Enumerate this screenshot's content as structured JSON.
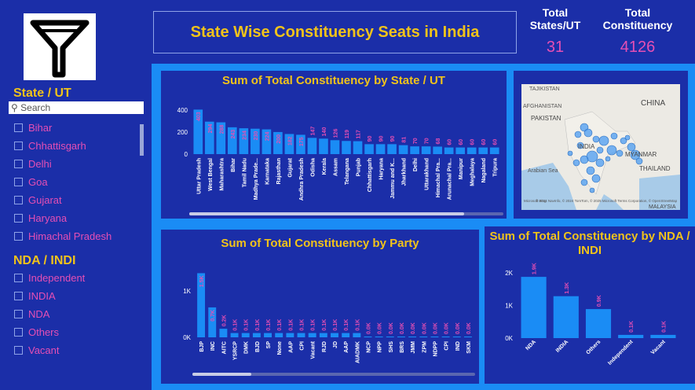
{
  "header": {
    "title": "State Wise Constituency Seats in India",
    "kpi_states_label": "Total States/UT",
    "kpi_states_value": "31",
    "kpi_const_label": "Total Constituency",
    "kpi_const_value": "4126"
  },
  "slicer_state": {
    "title": "State / UT",
    "search_placeholder": "Search",
    "items": [
      "Bihar",
      "Chhattisgarh",
      "Delhi",
      "Goa",
      "Gujarat",
      "Haryana",
      "Himachal Pradesh"
    ]
  },
  "slicer_alliance": {
    "title": "NDA / INDI",
    "items": [
      "Independent",
      "INDIA",
      "NDA",
      "Others",
      "Vacant"
    ]
  },
  "map": {
    "labels": [
      "TAJIKISTAN",
      "AFGHANISTAN",
      "PAKISTAN",
      "CHINA",
      "INDIA",
      "MYANMAR",
      "THAILAND",
      "Arabian Sea",
      "MALAYSIA"
    ],
    "attribution": "© 2024 NavInfo, © 2024 TomTom, © 2025 Microsoft Terms Corporation, © OpenStreetMap",
    "brand": "Microsoft Bing"
  },
  "chart_data": [
    {
      "type": "bar",
      "title": "Sum of Total Constituency by State / UT",
      "categories": [
        "Uttar Pradesh",
        "West Bengal",
        "Maharashtra",
        "Bihar",
        "Tamil Nadu",
        "Madhya Prade...",
        "Karnataka",
        "Rajasthan",
        "Gujarat",
        "Andhra Pradesh",
        "Odisha",
        "Kerala",
        "Assam",
        "Telangana",
        "Punjab",
        "Chhattisgarh",
        "Haryana",
        "Jammu and K...",
        "Jharkhand",
        "Delhi",
        "Uttarakhand",
        "Himachal Pra...",
        "Arunachal Pra...",
        "Manipur",
        "Meghalaya",
        "Nagaland",
        "Tripura"
      ],
      "values": [
        403,
        294,
        288,
        243,
        234,
        230,
        224,
        200,
        182,
        175,
        147,
        140,
        126,
        119,
        117,
        90,
        90,
        90,
        81,
        70,
        70,
        68,
        60,
        60,
        60,
        60,
        60
      ],
      "y_ticks": [
        "400",
        "200",
        "0"
      ],
      "ylim": [
        0,
        420
      ]
    },
    {
      "type": "bar",
      "title": "Sum of Total Constituency by Party",
      "categories": [
        "BJP",
        "INC",
        "AITC",
        "YSRCP",
        "DMK",
        "BJD",
        "SP",
        "None",
        "AAP",
        "CPI",
        "Vacant",
        "RJD",
        "JD",
        "AAP",
        "AIADMK",
        "NCP",
        "NPP",
        "SHS",
        "BRS",
        "JMM",
        "ZPM",
        "NDPP",
        "CPI",
        "IND",
        "SKM"
      ],
      "values": [
        1500,
        700,
        200,
        100,
        100,
        100,
        100,
        100,
        100,
        100,
        100,
        100,
        100,
        100,
        100,
        0,
        0,
        0,
        0,
        0,
        0,
        0,
        0,
        0,
        0
      ],
      "labels": [
        "1.5K",
        "0.7K",
        "0.2K",
        "0.1K",
        "0.1K",
        "0.1K",
        "0.1K",
        "0.1K",
        "0.1K",
        "0.1K",
        "0.1K",
        "0.1K",
        "0.1K",
        "0.1K",
        "0.1K",
        "0.0K",
        "0.0K",
        "0.0K",
        "0.0K",
        "0.0K",
        "0.0K",
        "0.0K",
        "0.0K",
        "0.0K",
        "0.0K"
      ],
      "y_ticks": [
        "1K",
        "0K"
      ],
      "ylim": [
        0,
        1600
      ]
    },
    {
      "type": "bar",
      "title": "Sum of Total Constituency by NDA / INDI",
      "categories": [
        "NDA",
        "INDIA",
        "Others",
        "Independent",
        "Vacant"
      ],
      "values": [
        1900,
        1300,
        900,
        100,
        100
      ],
      "labels": [
        "1.9K",
        "1.3K",
        "0.9K",
        "0.1K",
        "0.1K"
      ],
      "y_ticks": [
        "2K",
        "1K",
        "0K"
      ],
      "ylim": [
        0,
        2000
      ]
    }
  ],
  "colors": {
    "background": "#1b2ea8",
    "accent": "#1a8cf5",
    "title": "#f1c31a",
    "label": "#e64fb4"
  }
}
